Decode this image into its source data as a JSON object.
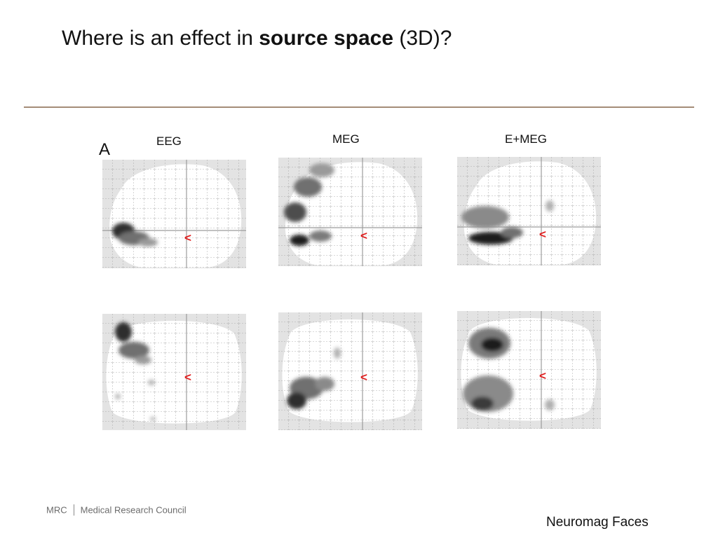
{
  "slide": {
    "title_prefix": "Where is an effect in ",
    "title_bold": "source space",
    "title_suffix": " (3D)?",
    "panel_letter": "A"
  },
  "columns": [
    {
      "label": "EEG"
    },
    {
      "label": "MEG"
    },
    {
      "label": "E+MEG"
    }
  ],
  "marker": {
    "glyph": "<",
    "color": "#e02020"
  },
  "colors": {
    "rule": "#a48c78",
    "background_gray": "#e3e3e3",
    "brain_fill": "#ffffff",
    "grid": "#9a9a9a",
    "crosshair": "#9c9c9c"
  },
  "footer": {
    "org_short": "MRC",
    "org_long": "Medical Research Council",
    "note": "Neuromag Faces"
  }
}
